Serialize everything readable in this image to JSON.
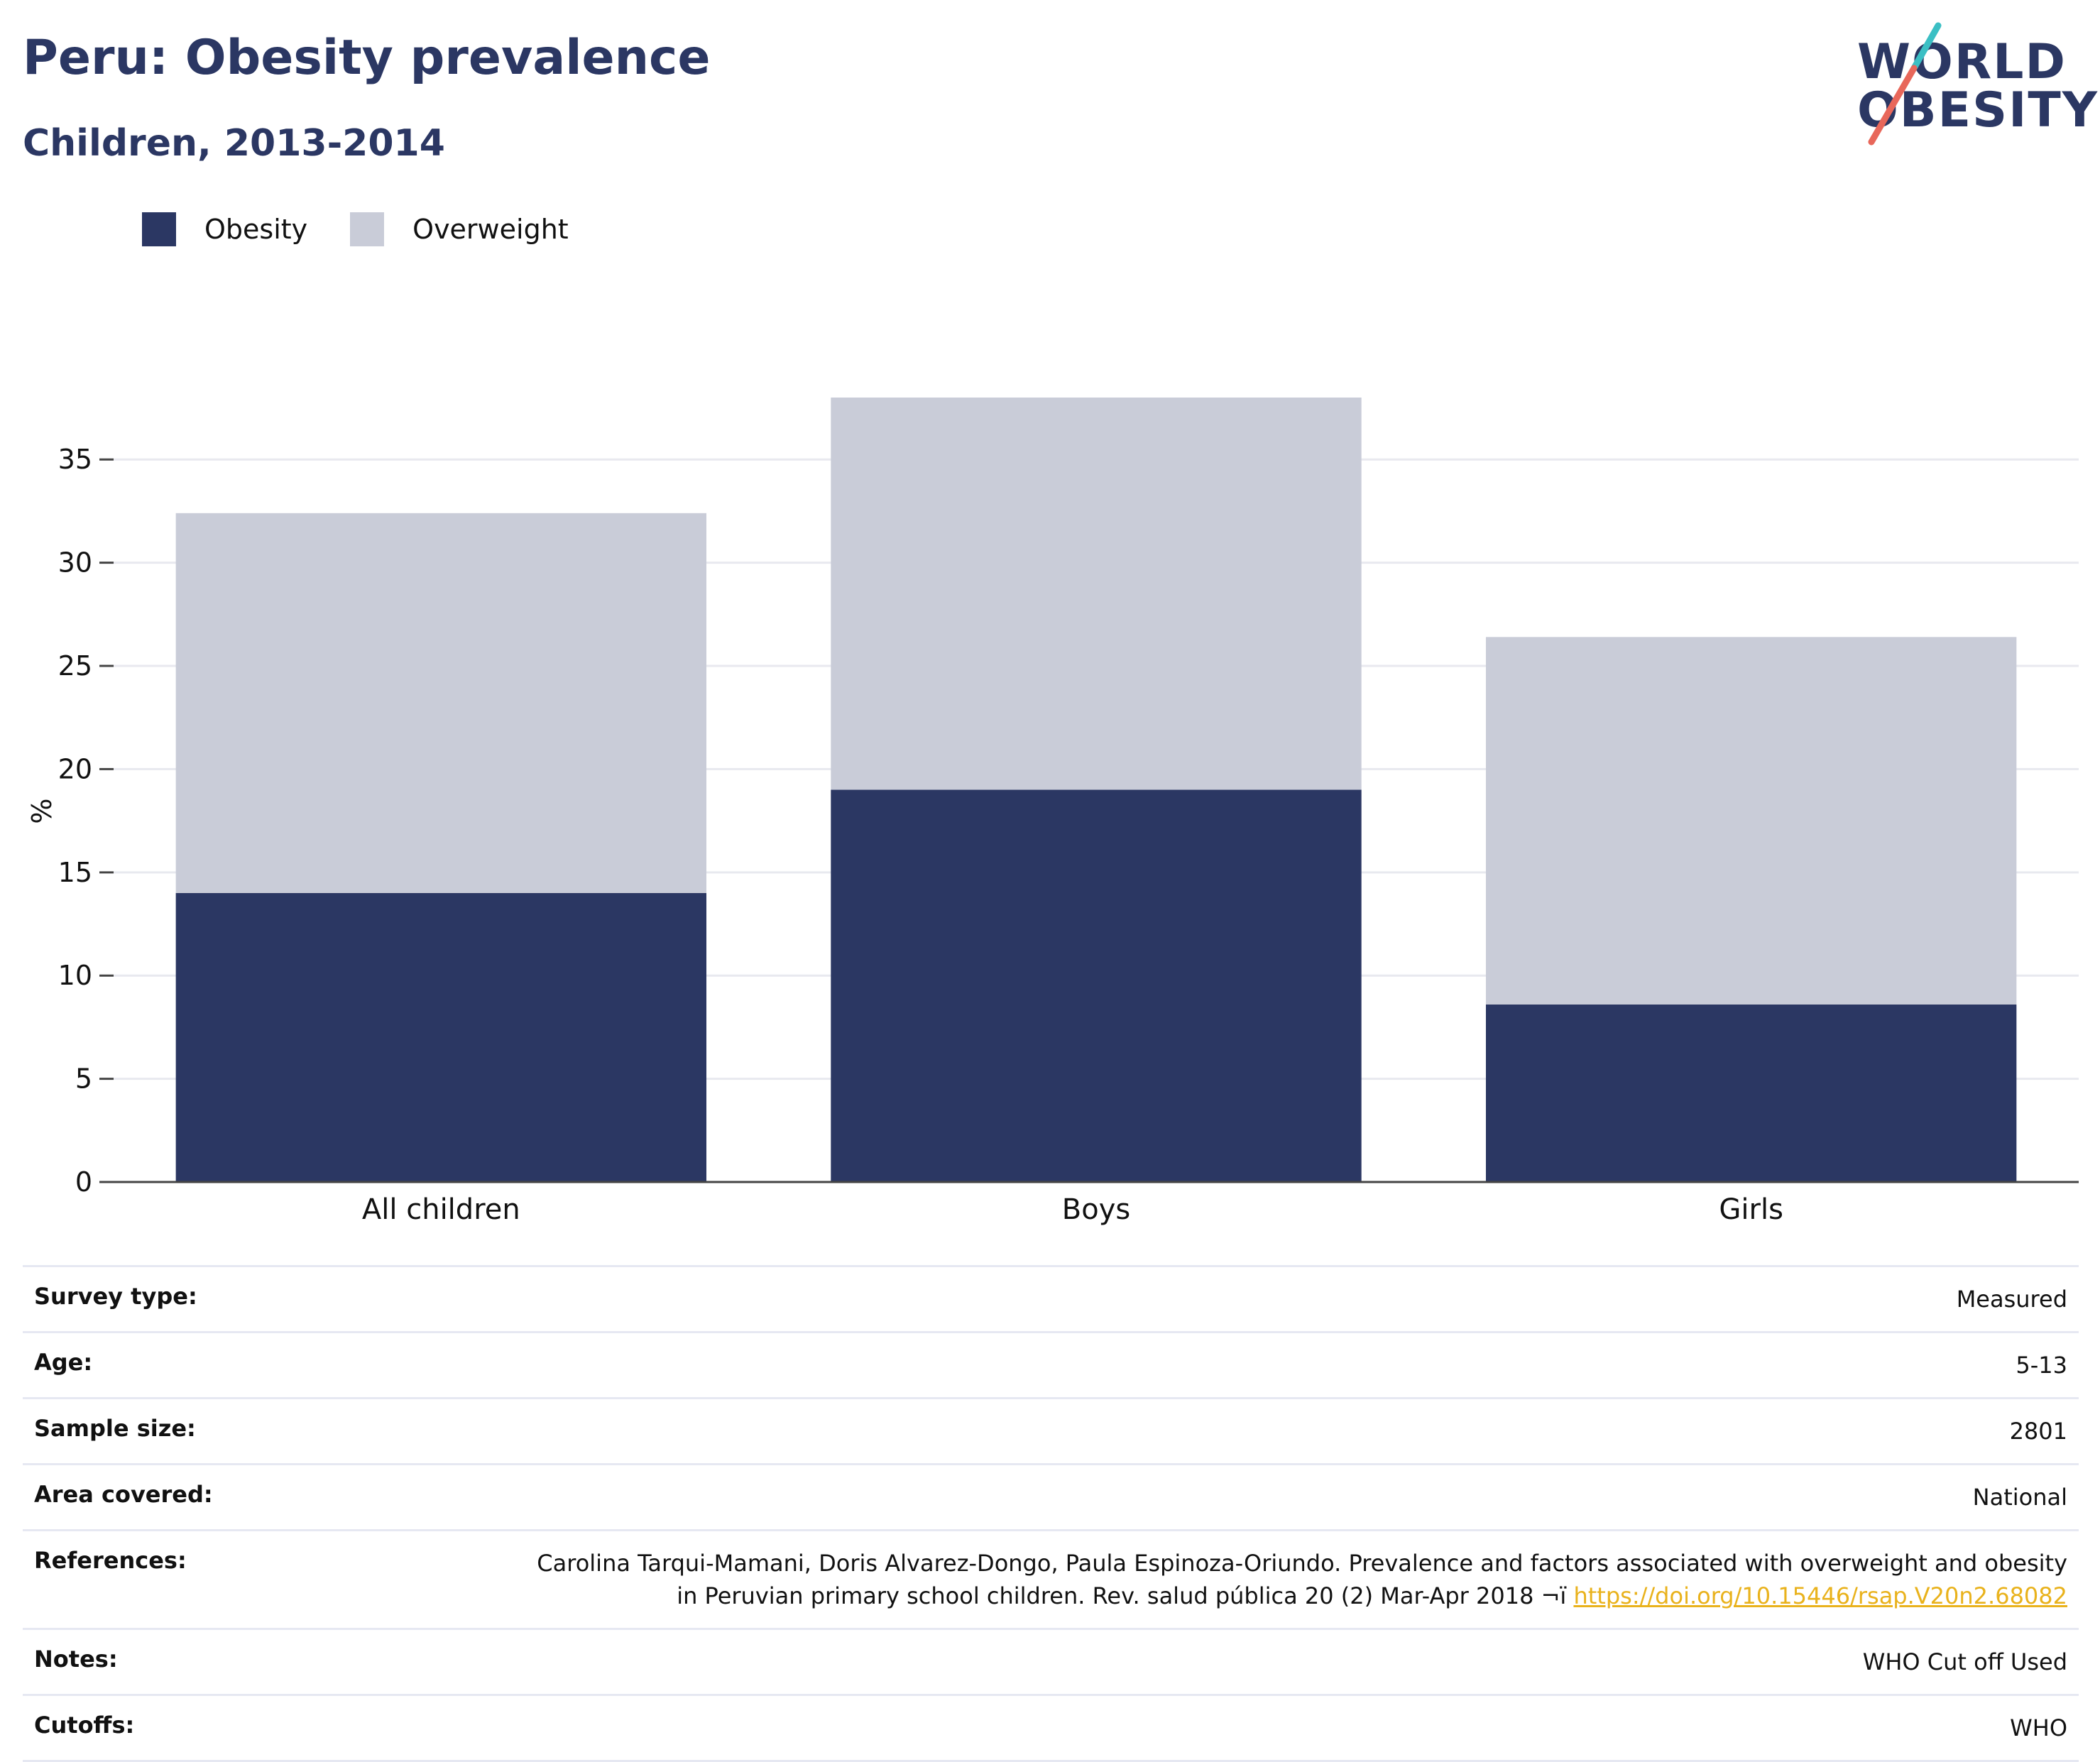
{
  "header": {
    "title": "Peru: Obesity prevalence",
    "subtitle": "Children, 2013-2014"
  },
  "logo": {
    "line1": "WORLD",
    "line2": "OBESITY",
    "colors": {
      "text": "#2b3763",
      "slash_top": "#3bbfc4",
      "slash_bottom": "#e8675a"
    }
  },
  "legend": [
    {
      "label": "Obesity",
      "color": "#2b3763"
    },
    {
      "label": "Overweight",
      "color": "#c9ccd8"
    }
  ],
  "chart_data": {
    "type": "bar",
    "stacked": true,
    "categories": [
      "All children",
      "Boys",
      "Girls"
    ],
    "series": [
      {
        "name": "Obesity",
        "values": [
          14.0,
          19.0,
          8.6
        ],
        "color": "#2b3763"
      },
      {
        "name": "Overweight",
        "values": [
          18.4,
          19.0,
          17.8
        ],
        "color": "#c9ccd8"
      }
    ],
    "ylabel": "%",
    "xlabel": "",
    "ylim": [
      0,
      38
    ],
    "yticks": [
      0,
      5,
      10,
      15,
      20,
      25,
      30,
      35
    ],
    "grid": true,
    "legend_position": "top-left"
  },
  "info": {
    "survey_type": {
      "label": "Survey type:",
      "value": "Measured"
    },
    "age": {
      "label": "Age:",
      "value": "5-13"
    },
    "sample_size": {
      "label": "Sample size:",
      "value": "2801"
    },
    "area_covered": {
      "label": "Area covered:",
      "value": "National"
    },
    "references": {
      "label": "References:",
      "line1": "Carolina Tarqui-Mamani, Doris Alvarez-Dongo, Paula Espinoza-Oriundo. Prevalence and factors associated with overweight and obesity",
      "line2": "in Peruvian primary school children. Rev. salud pública 20 (2) Mar-Apr 2018 ¬ï",
      "link": "https://doi.org/10.15446/rsap.V20n2.68082"
    },
    "notes": {
      "label": "Notes:",
      "value": "WHO Cut off Used"
    },
    "cutoffs": {
      "label": "Cutoffs:",
      "value": "WHO"
    }
  }
}
